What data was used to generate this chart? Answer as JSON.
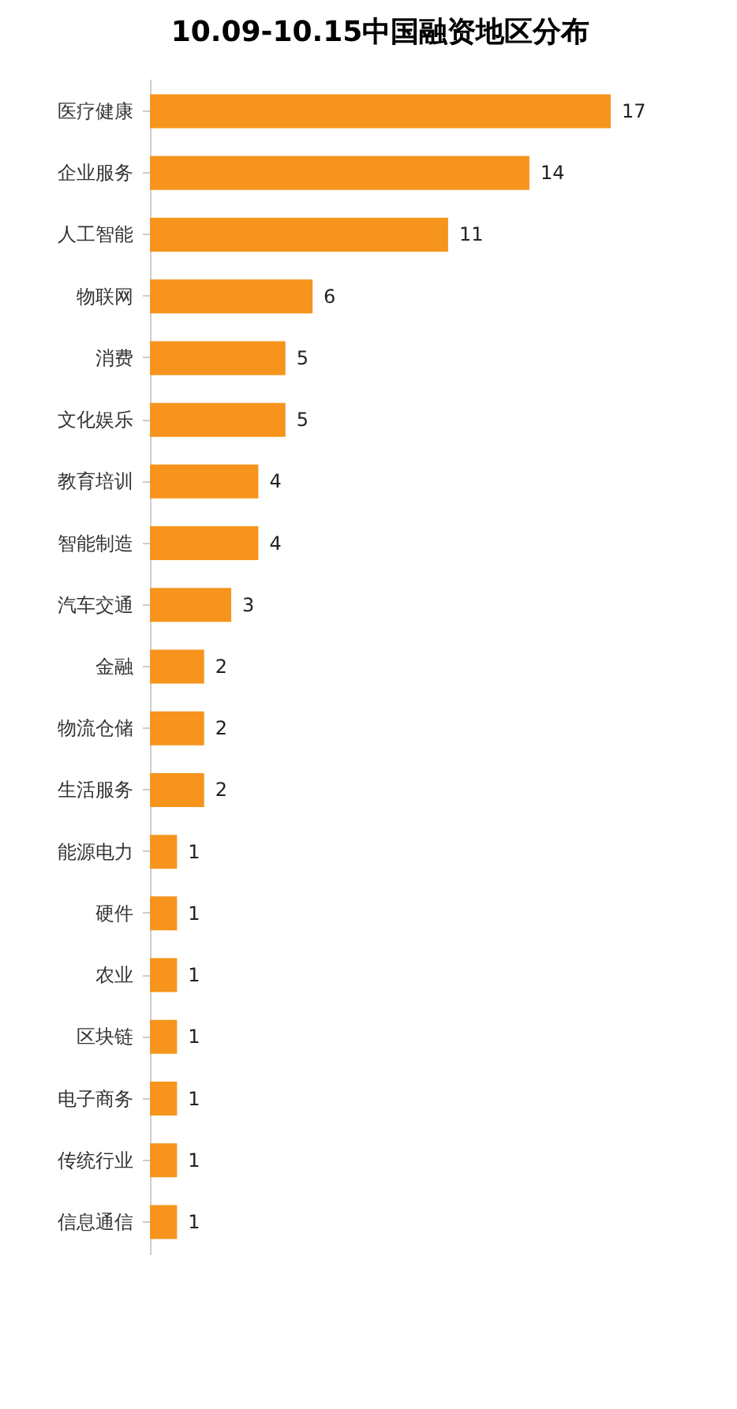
{
  "chart_data": {
    "type": "bar",
    "orientation": "horizontal",
    "title": "10.09-10.15中国融资地区分布",
    "categories": [
      "医疗健康",
      "企业服务",
      "人工智能",
      "物联网",
      "消费",
      "文化娱乐",
      "教育培训",
      "智能制造",
      "汽车交通",
      "金融",
      "物流仓储",
      "生活服务",
      "能源电力",
      "硬件",
      "农业",
      "区块链",
      "电子商务",
      "传统行业",
      "信息通信"
    ],
    "values": [
      17,
      14,
      11,
      6,
      5,
      5,
      4,
      4,
      3,
      2,
      2,
      2,
      1,
      1,
      1,
      1,
      1,
      1,
      1
    ],
    "color": "#f7941d",
    "data_labels": true,
    "grid": false
  }
}
